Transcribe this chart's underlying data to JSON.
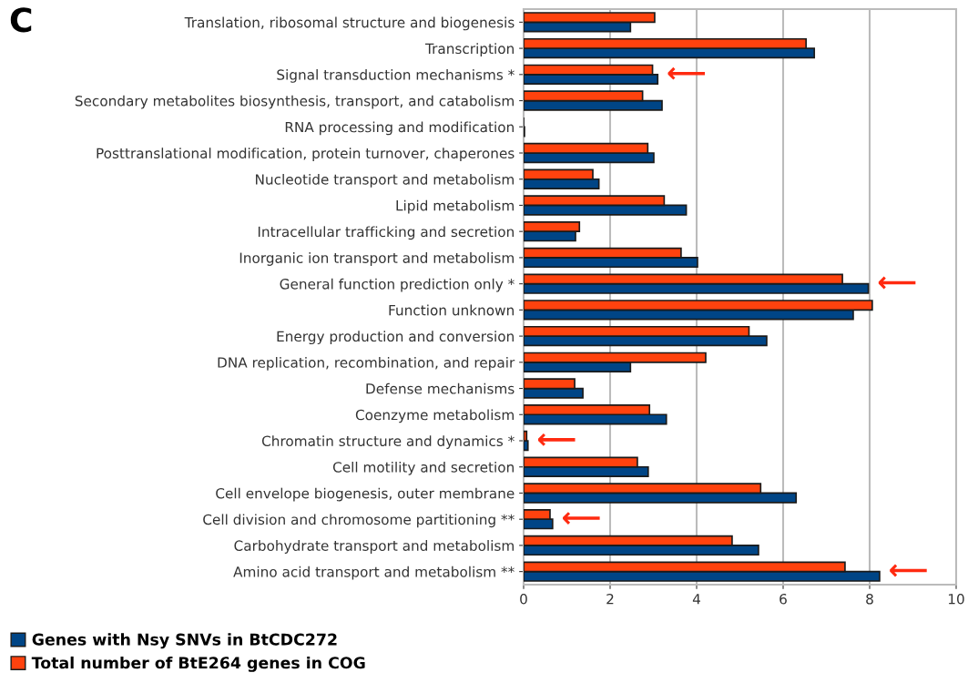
{
  "chart_data": {
    "type": "bar",
    "orientation": "horizontal",
    "title": "C",
    "categories": [
      "Translation, ribosomal structure and biogenesis",
      "Transcription",
      "Signal transduction mechanisms *",
      "Secondary metabolites biosynthesis, transport, and catabolism",
      "RNA processing and modification",
      "Posttranslational modification, protein turnover, chaperones",
      "Nucleotide transport and metabolism",
      "Lipid metabolism",
      "Intracellular trafficking and secretion",
      "Inorganic ion transport and metabolism",
      "General function prediction only *",
      "Function unknown",
      "Energy production and conversion",
      "DNA replication, recombination, and repair",
      "Defense mechanisms",
      "Coenzyme metabolism",
      "Chromatin structure and dynamics *",
      "Cell motility and secretion",
      "Cell envelope biogenesis, outer membrane",
      "Cell division and chromosome partitioning **",
      "Carbohydrate transport and metabolism",
      "Amino acid transport and metabolism **"
    ],
    "series": [
      {
        "name": "Genes with Nsy SNVs in BtCDC272",
        "color": "#004586",
        "values": [
          2.47,
          6.72,
          3.1,
          3.2,
          0.02,
          3.01,
          1.74,
          3.76,
          1.2,
          4.02,
          7.97,
          7.62,
          5.62,
          2.47,
          1.37,
          3.3,
          0.1,
          2.88,
          6.3,
          0.67,
          5.43,
          8.23
        ]
      },
      {
        "name": "Total number of BtE264 genes in COG",
        "color": "#ff420e",
        "values": [
          3.03,
          6.53,
          2.98,
          2.75,
          null,
          2.87,
          1.6,
          3.25,
          1.29,
          3.64,
          7.37,
          8.06,
          5.21,
          4.21,
          1.18,
          2.91,
          0.07,
          2.63,
          5.48,
          0.61,
          4.82,
          7.43
        ]
      }
    ],
    "xlim": [
      0,
      10
    ],
    "xticks": [
      0,
      2,
      4,
      6,
      8,
      10
    ],
    "grid": "x",
    "legend": "bottom left",
    "annotations": [
      {
        "text": "⟵",
        "x": 3.1,
        "y": "Signal transduction mechanisms *"
      },
      {
        "text": "⟵",
        "x": 7.97,
        "y": "General function prediction only *"
      },
      {
        "text": "⟵",
        "x": 0.1,
        "y": "Chromatin structure and dynamics *"
      },
      {
        "text": "⟵",
        "x": 0.67,
        "y": "Cell division and chromosome partitioning **"
      },
      {
        "text": "⟵",
        "x": 8.23,
        "y": "Amino acid transport and metabolism **"
      }
    ]
  }
}
